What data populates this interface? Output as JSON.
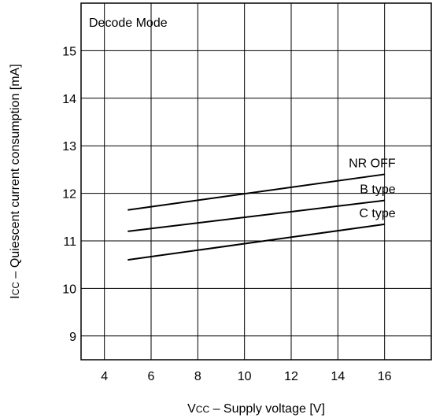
{
  "chart_data": {
    "type": "line",
    "annotation": "Decode Mode",
    "xlabel": {
      "main": "V",
      "sub": "CC",
      "rest": " – Supply voltage [V]"
    },
    "ylabel": {
      "main": "I",
      "sub": "CC",
      "rest": " – Quiescent current consumption [mA]"
    },
    "xlim": [
      3,
      18
    ],
    "ylim": [
      8.5,
      16
    ],
    "xticks": [
      4,
      6,
      8,
      10,
      12,
      14,
      16
    ],
    "yticks": [
      9,
      10,
      11,
      12,
      13,
      14,
      15
    ],
    "grid": true,
    "series": [
      {
        "name": "NR OFF",
        "x": [
          5,
          16
        ],
        "y": [
          11.65,
          12.4
        ]
      },
      {
        "name": "B type",
        "x": [
          5,
          16
        ],
        "y": [
          11.2,
          11.85
        ]
      },
      {
        "name": "C type",
        "x": [
          5,
          16
        ],
        "y": [
          10.6,
          11.35
        ]
      }
    ]
  }
}
